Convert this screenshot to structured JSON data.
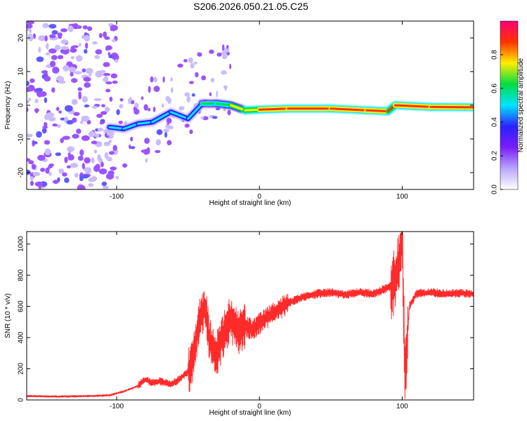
{
  "title": "S206.2026.050.21.05.C25",
  "colors": {
    "snr_line": "#ff2a2a",
    "ridge_peak": "#ff0000",
    "ridge_mid": "#00cc44",
    "ridge_low": "#2222ff",
    "noise": "#7a1cff"
  },
  "chart_data": [
    {
      "type": "heatmap",
      "title": "",
      "xlabel": "Height of straight line (km)",
      "ylabel": "Frequency (Hz)",
      "xlim": [
        -163,
        150
      ],
      "ylim": [
        -25,
        25
      ],
      "x_ticks": [
        -100,
        0,
        100
      ],
      "y_ticks": [
        -20,
        -10,
        0,
        10,
        20
      ],
      "colorbar": {
        "label": "Normalized spectral amplitude",
        "range": [
          0,
          1
        ],
        "ticks": [
          "0.0",
          "0.2",
          "0.4",
          "0.6",
          "0.8"
        ],
        "stops": [
          "#ffffff",
          "#b9a6ff",
          "#7a1cff",
          "#2b22ff",
          "#00e5ff",
          "#00dd44",
          "#ffee00",
          "#ff3300",
          "#ff0077"
        ]
      },
      "ridge": [
        {
          "x": -105,
          "y": -6.5,
          "v": 0.45
        },
        {
          "x": -95,
          "y": -7.0,
          "v": 0.55
        },
        {
          "x": -85,
          "y": -5.5,
          "v": 0.5
        },
        {
          "x": -75,
          "y": -5.0,
          "v": 0.55
        },
        {
          "x": -62,
          "y": -2.0,
          "v": 0.5
        },
        {
          "x": -50,
          "y": -4.0,
          "v": 0.5
        },
        {
          "x": -40,
          "y": 0.5,
          "v": 0.55
        },
        {
          "x": -30,
          "y": 0.5,
          "v": 0.65
        },
        {
          "x": -20,
          "y": 0.0,
          "v": 0.7
        },
        {
          "x": -10,
          "y": -1.5,
          "v": 0.75
        },
        {
          "x": 0,
          "y": -1.3,
          "v": 0.85
        },
        {
          "x": 20,
          "y": -1.0,
          "v": 0.9
        },
        {
          "x": 50,
          "y": -1.0,
          "v": 0.92
        },
        {
          "x": 75,
          "y": -1.5,
          "v": 0.88
        },
        {
          "x": 90,
          "y": -1.8,
          "v": 0.85
        },
        {
          "x": 95,
          "y": 0.0,
          "v": 0.8
        },
        {
          "x": 120,
          "y": -0.5,
          "v": 0.9
        },
        {
          "x": 150,
          "y": -0.6,
          "v": 0.85
        }
      ]
    },
    {
      "type": "line",
      "title": "",
      "xlabel": "Height of straight line (km)",
      "ylabel": "SNR (10 * v/v)",
      "xlim": [
        -163,
        150
      ],
      "ylim": [
        0,
        1080
      ],
      "x_ticks": [
        -100,
        0,
        100
      ],
      "y_ticks": [
        0,
        200,
        400,
        600,
        800,
        1000
      ],
      "series": [
        {
          "name": "SNR",
          "x": [
            -163,
            -140,
            -120,
            -105,
            -95,
            -85,
            -80,
            -75,
            -70,
            -62,
            -55,
            -48,
            -45,
            -42,
            -38,
            -35,
            -30,
            -25,
            -20,
            -15,
            -10,
            -5,
            0,
            10,
            20,
            30,
            40,
            50,
            60,
            70,
            80,
            90,
            95,
            98,
            100,
            102,
            105,
            110,
            120,
            130,
            140,
            150
          ],
          "values": [
            25,
            22,
            25,
            30,
            55,
            90,
            130,
            110,
            120,
            100,
            140,
            200,
            350,
            520,
            600,
            380,
            300,
            420,
            520,
            430,
            480,
            450,
            490,
            560,
            620,
            660,
            680,
            690,
            675,
            690,
            680,
            720,
            760,
            900,
            1060,
            140,
            600,
            680,
            690,
            680,
            685,
            680
          ]
        }
      ]
    }
  ]
}
